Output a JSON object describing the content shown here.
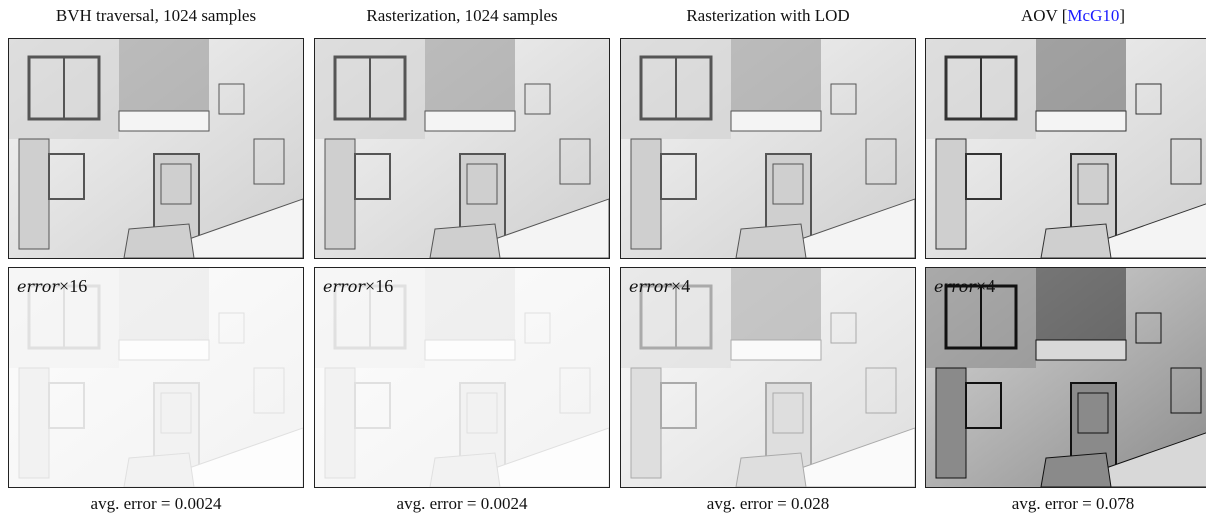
{
  "columns": [
    {
      "title_parts": [
        "BVH traversal, 1024 samples"
      ],
      "error_label": {
        "term": "error",
        "factor": "×16"
      },
      "caption": {
        "label": "avg. error =",
        "value": 0.0024
      }
    },
    {
      "title_parts": [
        "Rasterization, 1024 samples"
      ],
      "error_label": {
        "term": "error",
        "factor": "×16"
      },
      "caption": {
        "label": "avg. error =",
        "value": 0.0024
      }
    },
    {
      "title_parts": [
        "Rasterization with LOD"
      ],
      "error_label": {
        "term": "error",
        "factor": "×4"
      },
      "caption": {
        "label": "avg. error =",
        "value": 0.028
      }
    },
    {
      "title_parts": [
        "AOV [",
        "McG10",
        "]"
      ],
      "error_label": {
        "term": "error",
        "factor": "×4"
      },
      "caption": {
        "label": "avg. error =",
        "value": 0.078
      }
    }
  ]
}
